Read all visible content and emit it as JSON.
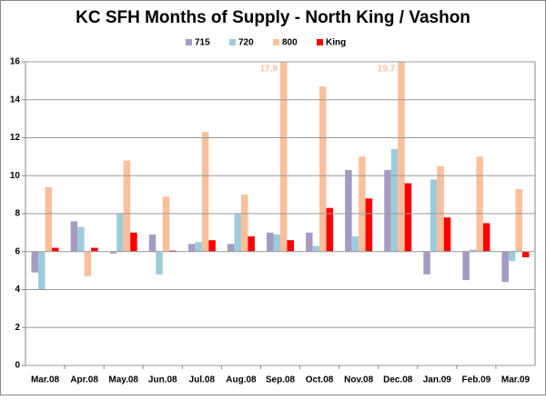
{
  "chart_data": {
    "type": "bar",
    "title": "KC SFH Months of Supply - North King / Vashon",
    "categories": [
      "Mar.08",
      "Apr.08",
      "May.08",
      "Jun.08",
      "Jul.08",
      "Aug.08",
      "Sep.08",
      "Oct.08",
      "Nov.08",
      "Dec.08",
      "Jan.09",
      "Feb.09",
      "Mar.09"
    ],
    "series": [
      {
        "name": "715",
        "color": "#a59bc2",
        "values": [
          4.9,
          7.6,
          5.9,
          6.9,
          6.4,
          6.4,
          7.0,
          7.0,
          10.3,
          10.3,
          4.8,
          4.5,
          4.4
        ]
      },
      {
        "name": "720",
        "color": "#9ecbdc",
        "values": [
          4.0,
          7.3,
          8.0,
          4.8,
          6.5,
          8.0,
          6.9,
          6.3,
          6.8,
          11.4,
          9.8,
          6.1,
          5.5
        ]
      },
      {
        "name": "800",
        "color": "#fbbf9b",
        "values": [
          9.4,
          4.7,
          10.8,
          8.9,
          12.3,
          9.0,
          17.9,
          14.7,
          11.0,
          19.7,
          10.5,
          11.0,
          9.3
        ],
        "value_labels": [
          null,
          null,
          null,
          null,
          null,
          null,
          "17.9",
          null,
          null,
          "19.7",
          null,
          null,
          null
        ]
      },
      {
        "name": "King",
        "color": "#ff0000",
        "values": [
          6.2,
          6.2,
          7.0,
          6.05,
          6.6,
          6.8,
          6.6,
          8.3,
          8.8,
          9.6,
          7.8,
          7.5,
          5.7
        ]
      }
    ],
    "ylim": [
      0,
      16
    ],
    "yticks": [
      0,
      2,
      4,
      6,
      8,
      10,
      12,
      14,
      16
    ],
    "grid": true,
    "x_axis_crosses": 6,
    "legend": "top"
  }
}
